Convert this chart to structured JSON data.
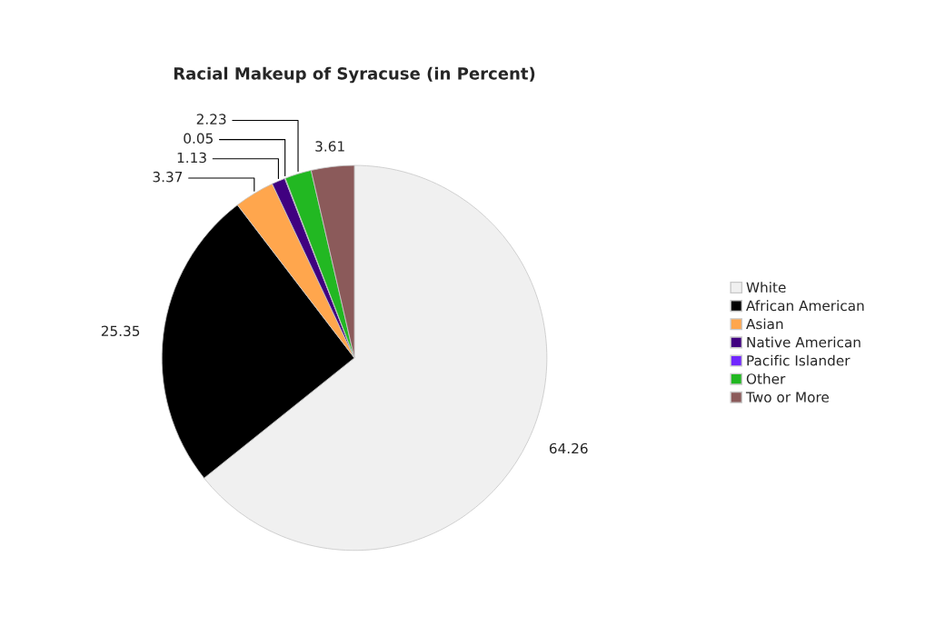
{
  "chart_data": {
    "type": "pie",
    "title": "Racial Makeup of Syracuse (in Percent)",
    "categories": [
      "White",
      "African American",
      "Asian",
      "Native American",
      "Pacific Islander",
      "Other",
      "Two or More"
    ],
    "values": [
      64.26,
      25.35,
      3.37,
      1.13,
      0.05,
      2.23,
      3.61
    ],
    "colors": [
      "#f0f0f0",
      "#000000",
      "#ffa64d",
      "#400080",
      "#7026ff",
      "#22b822",
      "#8b5a5a"
    ],
    "data_labels": true,
    "legend": "right"
  }
}
